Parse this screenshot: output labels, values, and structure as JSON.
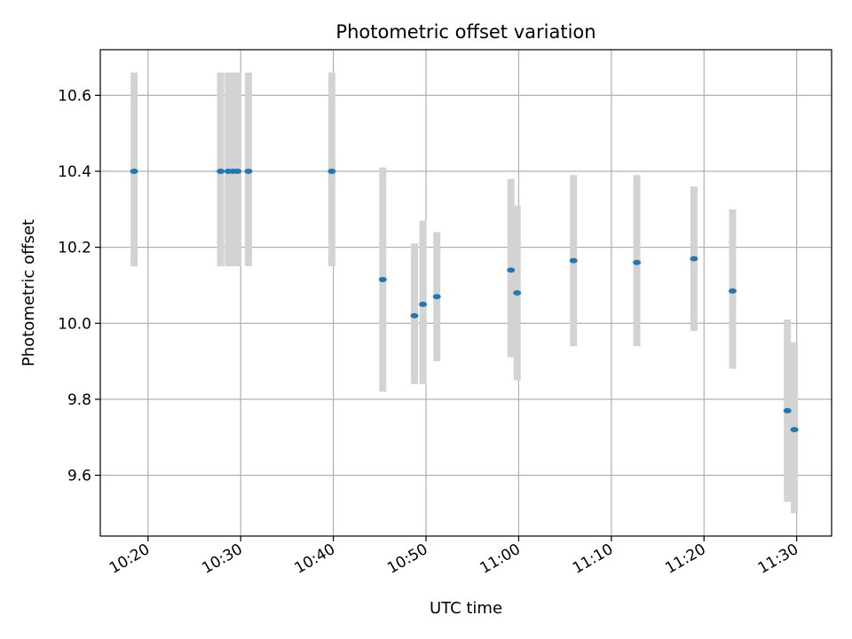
{
  "chart_data": {
    "type": "scatter",
    "title": "Photometric offset variation",
    "xlabel": "UTC time",
    "ylabel": "Photometric offset",
    "grid": true,
    "ylim": [
      9.44,
      10.72
    ],
    "yticks": [
      9.6,
      9.8,
      10.0,
      10.2,
      10.4,
      10.6
    ],
    "ytick_labels": [
      "9.6",
      "9.8",
      "10.0",
      "10.2",
      "10.4",
      "10.6"
    ],
    "xlim": [
      "10:14:51",
      "11:33:46"
    ],
    "xticks": [
      "10:20",
      "10:30",
      "10:40",
      "10:50",
      "11:00",
      "11:10",
      "11:20",
      "11:30"
    ],
    "marker_color": "#1f77b4",
    "errorbar_color": "#d3d3d3",
    "points": [
      {
        "x": "10:18:30",
        "y": 10.4,
        "ylow": 10.15,
        "yhigh": 10.66
      },
      {
        "x": "10:27:50",
        "y": 10.4,
        "ylow": 10.15,
        "yhigh": 10.66
      },
      {
        "x": "10:28:40",
        "y": 10.4,
        "ylow": 10.15,
        "yhigh": 10.66
      },
      {
        "x": "10:29:10",
        "y": 10.4,
        "ylow": 10.15,
        "yhigh": 10.66
      },
      {
        "x": "10:29:40",
        "y": 10.4,
        "ylow": 10.15,
        "yhigh": 10.66
      },
      {
        "x": "10:30:50",
        "y": 10.4,
        "ylow": 10.15,
        "yhigh": 10.66
      },
      {
        "x": "10:39:50",
        "y": 10.4,
        "ylow": 10.15,
        "yhigh": 10.66
      },
      {
        "x": "10:45:20",
        "y": 10.115,
        "ylow": 9.82,
        "yhigh": 10.41
      },
      {
        "x": "10:48:45",
        "y": 10.02,
        "ylow": 9.84,
        "yhigh": 10.21
      },
      {
        "x": "10:49:40",
        "y": 10.05,
        "ylow": 9.84,
        "yhigh": 10.27
      },
      {
        "x": "10:51:10",
        "y": 10.07,
        "ylow": 9.9,
        "yhigh": 10.24
      },
      {
        "x": "10:59:10",
        "y": 10.14,
        "ylow": 9.91,
        "yhigh": 10.38
      },
      {
        "x": "10:59:50",
        "y": 10.08,
        "ylow": 9.85,
        "yhigh": 10.31
      },
      {
        "x": "11:05:55",
        "y": 10.165,
        "ylow": 9.94,
        "yhigh": 10.39
      },
      {
        "x": "11:12:45",
        "y": 10.16,
        "ylow": 9.94,
        "yhigh": 10.39
      },
      {
        "x": "11:18:55",
        "y": 10.17,
        "ylow": 9.98,
        "yhigh": 10.36
      },
      {
        "x": "11:23:05",
        "y": 10.085,
        "ylow": 9.88,
        "yhigh": 10.3
      },
      {
        "x": "11:29:00",
        "y": 9.77,
        "ylow": 9.53,
        "yhigh": 10.01
      },
      {
        "x": "11:29:45",
        "y": 9.72,
        "ylow": 9.5,
        "yhigh": 9.95
      }
    ]
  }
}
